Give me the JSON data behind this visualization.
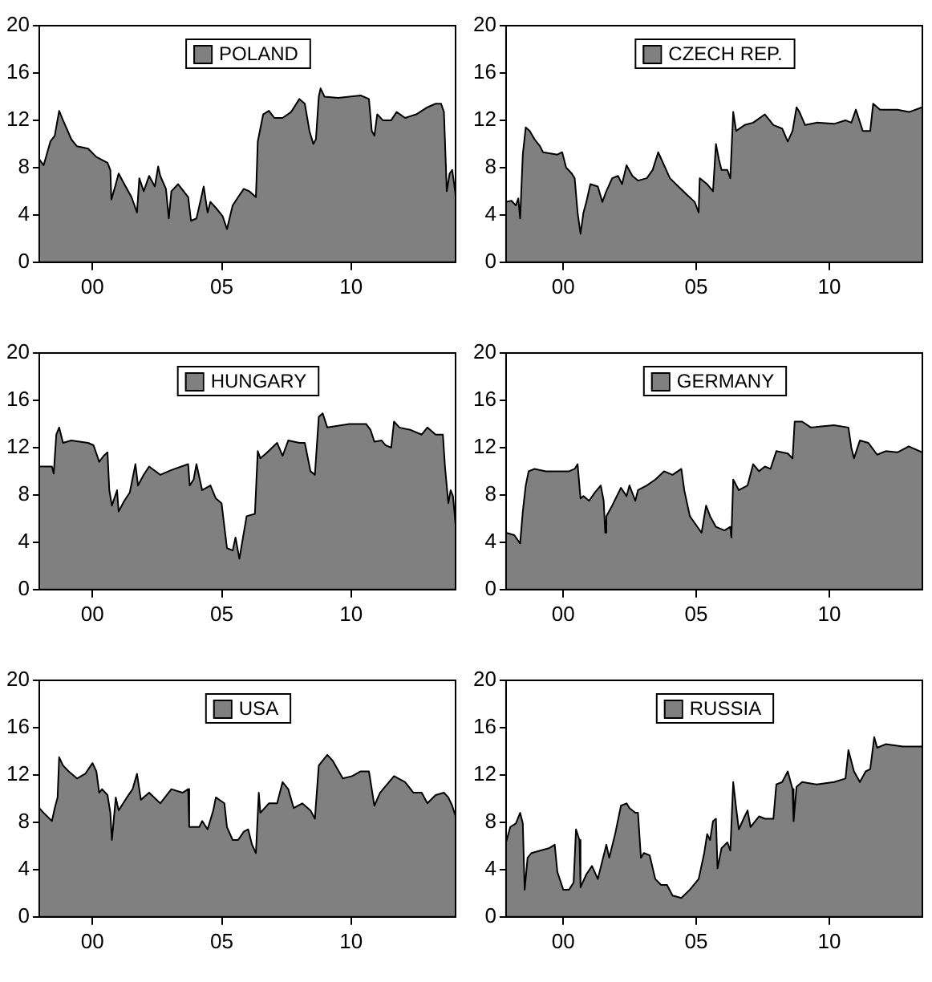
{
  "chart_data": [
    {
      "type": "area",
      "legend": "top",
      "grid": false,
      "xlim": [
        1997.94,
        2014.04
      ],
      "xticks": [
        {
          "value": 2000,
          "label": "00"
        },
        {
          "value": 2005,
          "label": "05"
        },
        {
          "value": 2010,
          "label": "10"
        }
      ],
      "ylim": [
        0,
        20
      ],
      "yticks": [
        0,
        4,
        8,
        12,
        16,
        20
      ],
      "series": [
        {
          "name": "POLAND",
          "color": "#808080",
          "x": [
            1997.94,
            1998.11,
            1998.37,
            1998.54,
            1998.71,
            1998.86,
            1999.18,
            1999.4,
            1999.83,
            2000.15,
            2000.58,
            2000.69,
            2000.73,
            2000.9,
            2001.01,
            2001.23,
            2001.51,
            2001.72,
            2001.81,
            2001.98,
            2002.19,
            2002.41,
            2002.54,
            2002.62,
            2002.84,
            2002.95,
            2003.05,
            2003.31,
            2003.7,
            2003.81,
            2004.02,
            2004.3,
            2004.45,
            2004.56,
            2004.77,
            2005.03,
            2005.2,
            2005.42,
            2005.63,
            2005.85,
            2006.06,
            2006.32,
            2006.39,
            2006.6,
            2006.82,
            2007.03,
            2007.35,
            2007.68,
            2008.0,
            2008.21,
            2008.39,
            2008.54,
            2008.64,
            2008.75,
            2008.82,
            2008.97,
            2009.5,
            2009.93,
            2010.37,
            2010.69,
            2010.8,
            2010.9,
            2011.01,
            2011.23,
            2011.55,
            2011.76,
            2012.09,
            2012.52,
            2012.95,
            2013.27,
            2013.48,
            2013.59,
            2013.7,
            2013.81,
            2013.91,
            2014.04
          ],
          "values": [
            8.7,
            8.2,
            10.2,
            10.7,
            12.8,
            12.0,
            10.4,
            9.8,
            9.6,
            8.9,
            8.4,
            7.8,
            5.3,
            6.6,
            7.5,
            6.6,
            5.5,
            4.2,
            7.1,
            6.0,
            7.3,
            6.4,
            8.1,
            7.3,
            6.2,
            3.7,
            6.0,
            6.6,
            5.5,
            3.5,
            3.7,
            6.4,
            4.2,
            5.1,
            4.6,
            3.9,
            2.8,
            4.8,
            5.5,
            6.2,
            6.0,
            5.5,
            10.2,
            12.5,
            12.8,
            12.2,
            12.2,
            12.7,
            13.8,
            13.4,
            11.1,
            10.0,
            10.4,
            14.0,
            14.7,
            14.0,
            13.9,
            14.0,
            14.1,
            13.8,
            11.1,
            10.7,
            12.5,
            12.0,
            12.0,
            12.7,
            12.2,
            12.5,
            13.1,
            13.4,
            13.4,
            12.7,
            6.0,
            7.5,
            7.8,
            5.7
          ]
        }
      ]
    },
    {
      "type": "area",
      "legend": "top",
      "grid": false,
      "xlim": [
        1997.85,
        2013.5
      ],
      "xticks": [
        {
          "value": 2000,
          "label": "00"
        },
        {
          "value": 2005,
          "label": "05"
        },
        {
          "value": 2010,
          "label": "10"
        }
      ],
      "ylim": [
        0,
        20
      ],
      "yticks": [
        0,
        4,
        8,
        12,
        16,
        20
      ],
      "series": [
        {
          "name": "CZECH REP.",
          "color": "#808080",
          "x": [
            1997.85,
            1998.05,
            1998.22,
            1998.31,
            1998.38,
            1998.48,
            1998.59,
            1998.74,
            1998.92,
            1999.13,
            1999.24,
            1999.78,
            1999.96,
            2000.11,
            2000.32,
            2000.43,
            2000.54,
            2000.65,
            2000.76,
            2000.87,
            2001.02,
            2001.3,
            2001.47,
            2001.62,
            2001.84,
            2002.06,
            2002.21,
            2002.38,
            2002.6,
            2002.81,
            2003.14,
            2003.36,
            2003.57,
            2003.79,
            2004.01,
            2004.33,
            2004.65,
            2004.94,
            2005.09,
            2005.13,
            2005.41,
            2005.63,
            2005.74,
            2005.85,
            2005.95,
            2006.17,
            2006.28,
            2006.39,
            2006.5,
            2006.82,
            2007.14,
            2007.58,
            2007.9,
            2008.23,
            2008.44,
            2008.62,
            2008.77,
            2008.88,
            2009.09,
            2009.53,
            2010.18,
            2010.61,
            2010.83,
            2011.0,
            2011.26,
            2011.54,
            2011.65,
            2011.91,
            2012.56,
            2013.0,
            2013.49
          ],
          "values": [
            5.1,
            5.2,
            4.8,
            5.4,
            3.7,
            9.1,
            11.4,
            11.1,
            10.4,
            9.8,
            9.3,
            9.1,
            9.3,
            8.0,
            7.5,
            7.1,
            4.2,
            2.4,
            4.2,
            5.1,
            6.6,
            6.4,
            5.1,
            6.0,
            7.1,
            7.3,
            6.6,
            8.2,
            7.3,
            6.9,
            7.1,
            7.8,
            9.3,
            8.2,
            7.1,
            6.4,
            5.7,
            5.1,
            4.2,
            7.1,
            6.6,
            6.0,
            10.0,
            8.7,
            7.8,
            7.8,
            7.1,
            12.7,
            11.1,
            11.6,
            11.8,
            12.5,
            11.6,
            11.3,
            10.2,
            11.1,
            13.1,
            12.7,
            11.6,
            11.8,
            11.7,
            12.0,
            11.8,
            12.9,
            11.1,
            11.1,
            13.4,
            12.9,
            12.9,
            12.7,
            13.1
          ]
        }
      ]
    },
    {
      "type": "area",
      "legend": "top",
      "grid": false,
      "xlim": [
        1997.94,
        2014.04
      ],
      "xticks": [
        {
          "value": 2000,
          "label": "00"
        },
        {
          "value": 2005,
          "label": "05"
        },
        {
          "value": 2010,
          "label": "10"
        }
      ],
      "ylim": [
        0,
        20
      ],
      "yticks": [
        0,
        4,
        8,
        12,
        16,
        20
      ],
      "series": [
        {
          "name": "HUNGARY",
          "color": "#808080",
          "x": [
            1997.94,
            1998.43,
            1998.5,
            1998.6,
            1998.71,
            1998.86,
            1999.18,
            1999.83,
            2000.04,
            2000.26,
            2000.43,
            2000.58,
            2000.65,
            2000.75,
            2000.95,
            2001.01,
            2001.23,
            2001.44,
            2001.66,
            2001.76,
            2001.98,
            2002.19,
            2002.62,
            2003.05,
            2003.7,
            2003.76,
            2003.91,
            2004.02,
            2004.24,
            2004.56,
            2004.77,
            2004.99,
            2005.1,
            2005.2,
            2005.42,
            2005.53,
            2005.68,
            2005.85,
            2005.96,
            2006.28,
            2006.39,
            2006.49,
            2006.71,
            2007.14,
            2007.35,
            2007.57,
            2008.0,
            2008.21,
            2008.43,
            2008.6,
            2008.75,
            2008.9,
            2009.08,
            2009.93,
            2010.58,
            2010.75,
            2010.9,
            2011.18,
            2011.33,
            2011.55,
            2011.66,
            2011.87,
            2012.3,
            2012.73,
            2012.95,
            2013.27,
            2013.55,
            2013.63,
            2013.76,
            2013.85,
            2013.94,
            2014.04
          ],
          "values": [
            10.4,
            10.4,
            9.8,
            13.1,
            13.7,
            12.4,
            12.6,
            12.4,
            12.2,
            10.8,
            11.3,
            11.6,
            8.4,
            7.1,
            8.4,
            6.6,
            7.5,
            8.2,
            10.6,
            8.8,
            9.7,
            10.4,
            9.7,
            10.1,
            10.6,
            8.8,
            9.3,
            10.6,
            8.4,
            8.8,
            7.7,
            7.3,
            5.3,
            3.5,
            3.3,
            4.4,
            2.6,
            4.8,
            6.2,
            6.4,
            11.7,
            11.1,
            11.5,
            12.4,
            11.3,
            12.6,
            12.4,
            12.4,
            10.0,
            9.7,
            14.6,
            14.9,
            13.7,
            14.0,
            14.0,
            13.5,
            12.5,
            12.6,
            12.2,
            12.0,
            14.2,
            13.7,
            13.5,
            13.1,
            13.7,
            13.1,
            13.1,
            10.4,
            7.3,
            8.4,
            7.9,
            5.5
          ]
        }
      ]
    },
    {
      "type": "area",
      "legend": "top",
      "grid": false,
      "xlim": [
        1997.85,
        2013.5
      ],
      "xticks": [
        {
          "value": 2000,
          "label": "00"
        },
        {
          "value": 2005,
          "label": "05"
        },
        {
          "value": 2010,
          "label": "10"
        }
      ],
      "ylim": [
        0,
        20
      ],
      "yticks": [
        0,
        4,
        8,
        12,
        16,
        20
      ],
      "series": [
        {
          "name": "GERMANY",
          "color": "#808080",
          "x": [
            1997.85,
            1998.16,
            1998.38,
            1998.48,
            1998.59,
            1998.7,
            1998.92,
            1999.35,
            1999.78,
            2000.22,
            2000.43,
            2000.54,
            2000.65,
            2000.76,
            2000.97,
            2001.19,
            2001.41,
            2001.52,
            2001.58,
            2001.62,
            2001.84,
            2002.17,
            2002.38,
            2002.49,
            2002.71,
            2002.81,
            2003.14,
            2003.46,
            2003.79,
            2004.11,
            2004.44,
            2004.55,
            2004.76,
            2004.98,
            2005.2,
            2005.37,
            2005.52,
            2005.74,
            2006.06,
            2006.28,
            2006.32,
            2006.39,
            2006.6,
            2006.93,
            2007.14,
            2007.36,
            2007.58,
            2007.79,
            2008.01,
            2008.44,
            2008.62,
            2008.7,
            2008.98,
            2009.31,
            2010.18,
            2010.72,
            2010.83,
            2010.93,
            2011.15,
            2011.47,
            2011.8,
            2012.12,
            2012.56,
            2012.99,
            2013.49
          ],
          "values": [
            4.8,
            4.6,
            3.9,
            6.6,
            8.8,
            10.0,
            10.2,
            10.0,
            10.0,
            10.0,
            10.2,
            10.6,
            7.7,
            7.9,
            7.5,
            8.2,
            8.8,
            7.5,
            4.8,
            6.2,
            7.1,
            8.6,
            7.9,
            8.8,
            7.5,
            8.4,
            8.8,
            9.3,
            10.0,
            9.7,
            10.2,
            8.4,
            6.2,
            5.5,
            4.8,
            7.1,
            6.2,
            5.3,
            5.0,
            5.3,
            4.4,
            9.3,
            8.4,
            8.8,
            10.6,
            10.0,
            10.4,
            10.2,
            11.7,
            11.5,
            11.1,
            14.2,
            14.2,
            13.7,
            13.9,
            13.7,
            12.0,
            11.1,
            12.6,
            12.4,
            11.4,
            11.7,
            11.6,
            12.1,
            11.6
          ]
        }
      ]
    },
    {
      "type": "area",
      "legend": "top",
      "grid": false,
      "xlim": [
        1997.94,
        2014.04
      ],
      "xticks": [
        {
          "value": 2000,
          "label": "00"
        },
        {
          "value": 2005,
          "label": "05"
        },
        {
          "value": 2010,
          "label": "10"
        }
      ],
      "ylim": [
        0,
        20
      ],
      "yticks": [
        0,
        4,
        8,
        12,
        16,
        20
      ],
      "series": [
        {
          "name": "USA",
          "color": "#808080",
          "x": [
            1997.94,
            1998.11,
            1998.43,
            1998.54,
            1998.65,
            1998.71,
            1998.86,
            1999.08,
            1999.4,
            1999.72,
            2000.0,
            2000.15,
            2000.26,
            2000.37,
            2000.58,
            2000.69,
            2000.75,
            2000.9,
            2001.01,
            2001.33,
            2001.55,
            2001.72,
            2001.87,
            2002.19,
            2002.62,
            2003.05,
            2003.48,
            2003.7,
            2003.74,
            2004.13,
            2004.24,
            2004.45,
            2004.67,
            2004.77,
            2005.1,
            2005.2,
            2005.42,
            2005.63,
            2005.85,
            2006.02,
            2006.17,
            2006.32,
            2006.43,
            2006.49,
            2006.82,
            2007.14,
            2007.35,
            2007.57,
            2007.78,
            2008.11,
            2008.43,
            2008.6,
            2008.75,
            2009.08,
            2009.29,
            2009.68,
            2010.04,
            2010.37,
            2010.69,
            2010.9,
            2011.12,
            2011.66,
            2012.09,
            2012.41,
            2012.73,
            2012.95,
            2013.27,
            2013.59,
            2013.76,
            2013.91,
            2014.04
          ],
          "values": [
            9.2,
            8.8,
            8.1,
            9.2,
            10.1,
            13.5,
            12.8,
            12.3,
            11.7,
            12.1,
            13.0,
            12.3,
            10.5,
            10.8,
            10.3,
            8.8,
            6.5,
            10.1,
            9.0,
            10.1,
            10.8,
            12.1,
            9.9,
            10.5,
            9.6,
            10.8,
            10.5,
            10.8,
            7.6,
            7.6,
            8.1,
            7.4,
            9.0,
            10.1,
            9.6,
            7.6,
            6.5,
            6.5,
            7.2,
            7.4,
            6.1,
            5.4,
            10.5,
            8.8,
            9.6,
            9.6,
            11.4,
            10.8,
            9.2,
            9.6,
            9.0,
            8.3,
            12.8,
            13.7,
            13.2,
            11.7,
            11.9,
            12.3,
            12.3,
            9.4,
            10.5,
            11.9,
            11.4,
            10.5,
            10.5,
            9.6,
            10.3,
            10.5,
            10.1,
            9.4,
            8.5
          ]
        }
      ]
    },
    {
      "type": "area",
      "legend": "top",
      "grid": false,
      "xlim": [
        1997.85,
        2013.5
      ],
      "xticks": [
        {
          "value": 2000,
          "label": "00"
        },
        {
          "value": 2005,
          "label": "05"
        },
        {
          "value": 2010,
          "label": "10"
        }
      ],
      "ylim": [
        0,
        20
      ],
      "yticks": [
        0,
        4,
        8,
        12,
        16,
        20
      ],
      "series": [
        {
          "name": "RUSSIA",
          "color": "#808080",
          "x": [
            1997.85,
            1998.01,
            1998.22,
            1998.38,
            1998.48,
            1998.55,
            1998.66,
            1998.81,
            1999.13,
            1999.46,
            1999.68,
            1999.78,
            2000.0,
            2000.22,
            2000.39,
            2000.48,
            2000.61,
            2000.65,
            2000.87,
            2001.08,
            2001.3,
            2001.62,
            2001.73,
            2001.95,
            2002.17,
            2002.38,
            2002.49,
            2002.71,
            2002.81,
            2002.92,
            2003.03,
            2003.25,
            2003.46,
            2003.68,
            2003.9,
            2004.11,
            2004.44,
            2004.76,
            2005.09,
            2005.3,
            2005.41,
            2005.52,
            2005.63,
            2005.74,
            2005.8,
            2005.95,
            2006.17,
            2006.28,
            2006.39,
            2006.5,
            2006.6,
            2006.82,
            2006.93,
            2007.04,
            2007.36,
            2007.58,
            2007.9,
            2008.01,
            2008.23,
            2008.44,
            2008.62,
            2008.66,
            2008.77,
            2008.98,
            2009.53,
            2010.18,
            2010.61,
            2010.72,
            2010.93,
            2011.15,
            2011.37,
            2011.54,
            2011.69,
            2011.8,
            2012.12,
            2012.77,
            2013.49
          ],
          "values": [
            6.3,
            7.6,
            7.9,
            8.8,
            7.9,
            2.3,
            5.0,
            5.4,
            5.6,
            5.8,
            6.1,
            3.8,
            2.3,
            2.3,
            2.9,
            7.4,
            6.5,
            2.5,
            3.6,
            4.3,
            3.2,
            6.1,
            5.0,
            7.0,
            9.4,
            9.6,
            9.2,
            8.8,
            8.8,
            5.0,
            5.4,
            5.2,
            3.2,
            2.7,
            2.7,
            1.8,
            1.6,
            2.3,
            3.2,
            5.4,
            7.0,
            6.5,
            8.1,
            8.3,
            4.1,
            5.8,
            6.3,
            5.6,
            11.4,
            9.2,
            7.4,
            8.5,
            9.0,
            7.6,
            8.5,
            8.3,
            8.3,
            11.2,
            11.4,
            12.3,
            10.8,
            8.1,
            11.0,
            11.4,
            11.2,
            11.4,
            11.7,
            14.1,
            12.3,
            11.4,
            12.3,
            12.5,
            15.2,
            14.3,
            14.6,
            14.4,
            14.4
          ]
        }
      ]
    }
  ]
}
